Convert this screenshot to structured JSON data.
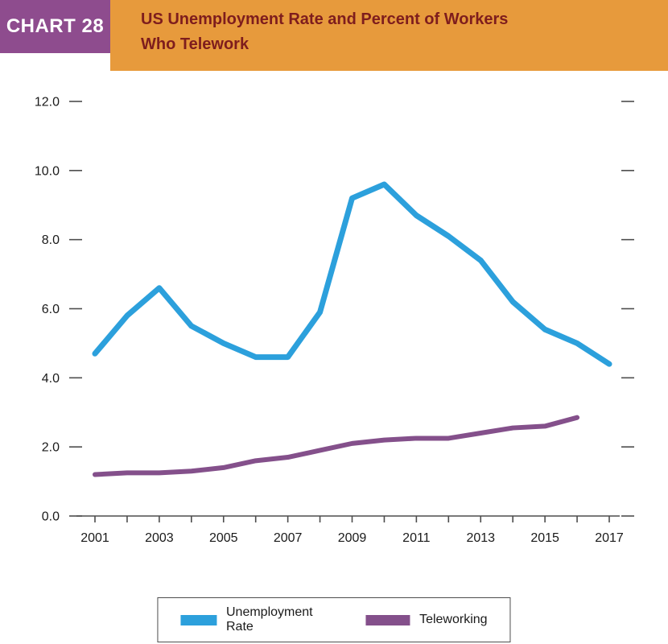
{
  "header": {
    "chart_label": "CHART 28",
    "title_line1": "US Unemployment Rate and Percent of Workers",
    "title_line2": "Who Telework"
  },
  "colors": {
    "header_band": "#E79A3C",
    "chart_label_bg": "#8E4C8E",
    "title_text": "#7E1D1D",
    "axis": "#4D4D4D",
    "tick_text": "#1a1a1a"
  },
  "chart_data": {
    "type": "line",
    "title": "US Unemployment Rate and Percent of Workers Who Telework",
    "xlabel": "",
    "ylabel": "",
    "ylim": [
      0,
      12
    ],
    "y_ticks": [
      0,
      2,
      4,
      6,
      8,
      10,
      12
    ],
    "y_tick_labels": [
      "0.0",
      "2.0",
      "4.0",
      "6.0",
      "8.0",
      "10.0",
      "12.0"
    ],
    "x_range": [
      2001,
      2017
    ],
    "x_tick_labels": [
      "2001",
      "2003",
      "2005",
      "2007",
      "2009",
      "2011",
      "2013",
      "2015",
      "2017"
    ],
    "grid": false,
    "legend_position": "bottom",
    "series": [
      {
        "name": "Unemployment Rate",
        "color": "#2CA0DC",
        "x": [
          2001,
          2002,
          2003,
          2004,
          2005,
          2006,
          2007,
          2008,
          2009,
          2010,
          2011,
          2012,
          2013,
          2014,
          2015,
          2016,
          2017
        ],
        "values": [
          4.7,
          5.8,
          6.6,
          5.5,
          5.0,
          4.6,
          4.6,
          5.9,
          9.2,
          9.6,
          8.7,
          8.1,
          7.4,
          6.2,
          5.4,
          5.0,
          4.4
        ]
      },
      {
        "name": "Teleworking",
        "color": "#84508B",
        "x": [
          2001,
          2002,
          2003,
          2004,
          2005,
          2006,
          2007,
          2008,
          2009,
          2010,
          2011,
          2012,
          2013,
          2014,
          2015,
          2016
        ],
        "values": [
          1.2,
          1.25,
          1.25,
          1.3,
          1.4,
          1.6,
          1.7,
          1.9,
          2.1,
          2.2,
          2.25,
          2.25,
          2.4,
          2.55,
          2.6,
          2.85
        ]
      }
    ]
  }
}
